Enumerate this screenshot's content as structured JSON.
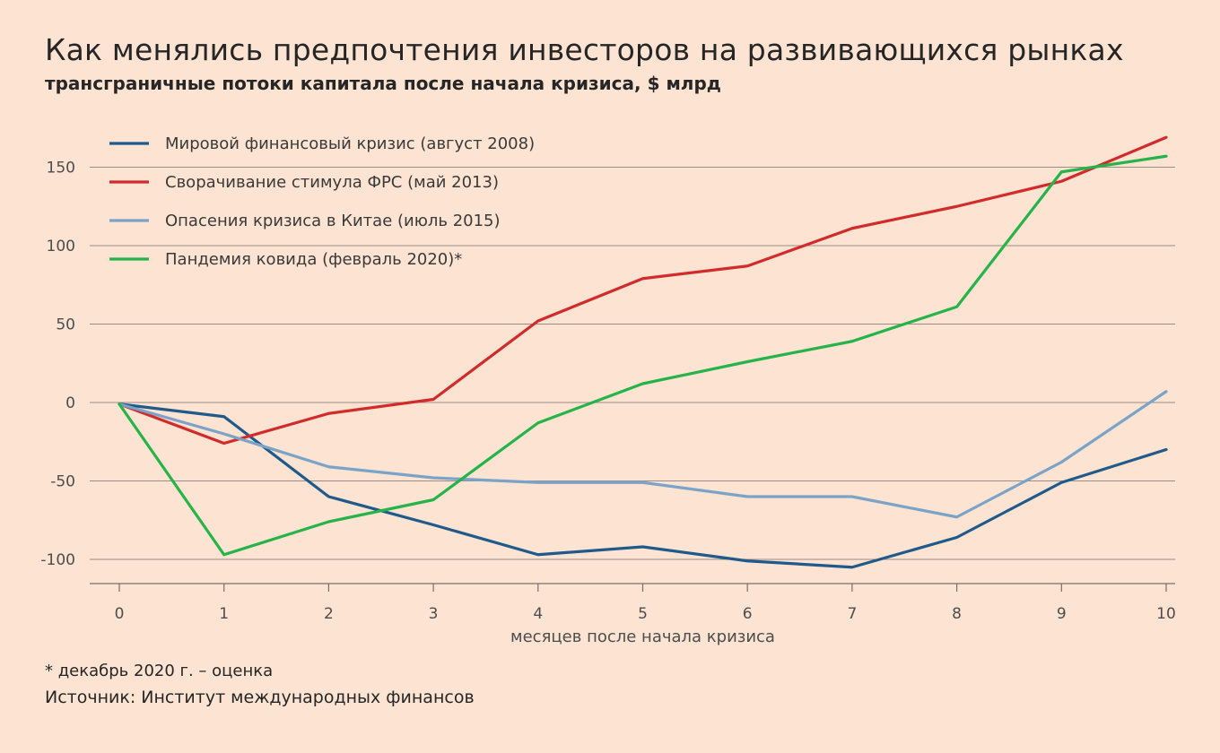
{
  "header": {
    "title": "Как менялись предпочтения инвесторов на развивающихся рынках",
    "subtitle": "трансграничные потоки капитала после начала кризиса, $ млрд"
  },
  "footer": {
    "footnote": "* декабрь 2020 г. – оценка",
    "source": "Источник: Институт международных финансов"
  },
  "chart_data": {
    "type": "line",
    "title": "Как менялись предпочтения инвесторов на развивающихся рынках",
    "subtitle": "трансграничные потоки капитала после начала кризиса, $ млрд",
    "xlabel": "месяцев после начала кризиса",
    "ylabel": "",
    "x": [
      0,
      1,
      2,
      3,
      4,
      5,
      6,
      7,
      8,
      9,
      10
    ],
    "xlim": [
      0,
      10
    ],
    "ylim": [
      -115,
      170
    ],
    "yticks": [
      150,
      100,
      50,
      0,
      -50,
      -100
    ],
    "ytick_labels": [
      "150",
      "100",
      "50",
      "0",
      "-50",
      "-100"
    ],
    "grid": "horizontal",
    "legend_position": "top-left",
    "series": [
      {
        "name": "Мировой финансовый кризис (август 2008)",
        "color": "#1f5a8b",
        "values": [
          -1,
          -9,
          -60,
          -78,
          -97,
          -92,
          -101,
          -105,
          -86,
          -51,
          -30
        ]
      },
      {
        "name": "Сворачивание стимула ФРС (май 2013)",
        "color": "#d22b2b",
        "values": [
          -1,
          -26,
          -7,
          2,
          52,
          79,
          87,
          111,
          125,
          141,
          169
        ]
      },
      {
        "name": "Опасения кризиса в Китае (июль 2015)",
        "color": "#7ba3c8",
        "values": [
          -1,
          -20,
          -41,
          -48,
          -51,
          -51,
          -60,
          -60,
          -73,
          -38,
          7
        ]
      },
      {
        "name": "Пандемия ковида (февраль 2020)*",
        "color": "#26b34a",
        "values": [
          -1,
          -97,
          -76,
          -62,
          -13,
          12,
          26,
          39,
          61,
          147,
          157
        ]
      }
    ]
  }
}
